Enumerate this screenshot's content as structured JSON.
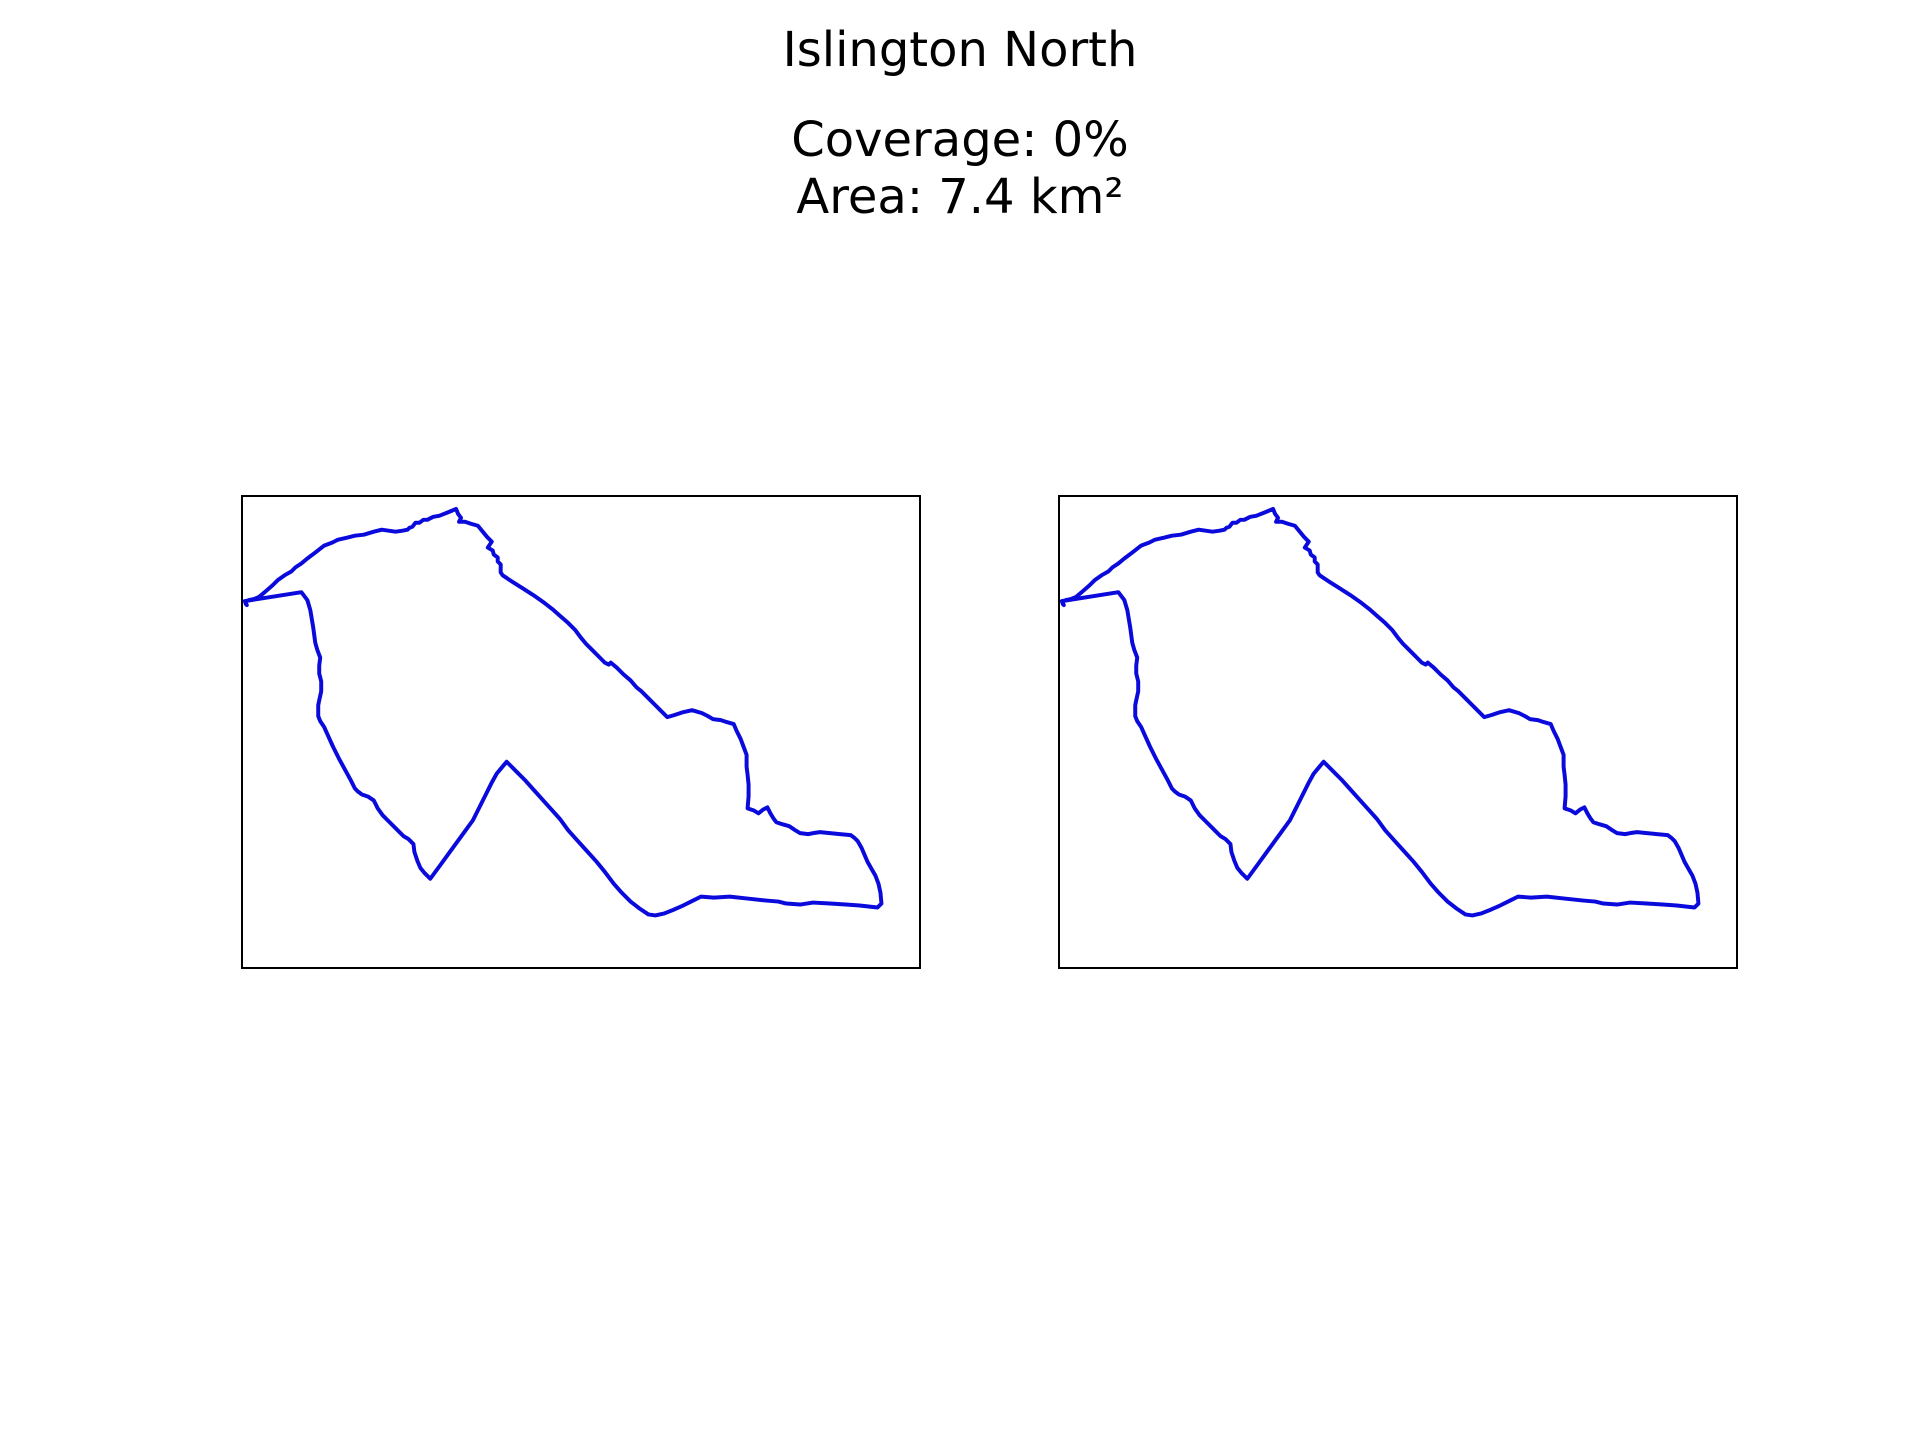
{
  "figure": {
    "title": "Islington North",
    "subtitle_lines": [
      "Coverage: 0%",
      "Area: 7.4 km²"
    ]
  },
  "style": {
    "boundary_color": "#0a0adc",
    "frame_color": "#000000",
    "background": "#ffffff"
  },
  "panels": [
    {
      "name": "left-map-panel",
      "layer": "constituency-boundary"
    },
    {
      "name": "right-map-panel",
      "layer": "constituency-boundary"
    }
  ]
}
